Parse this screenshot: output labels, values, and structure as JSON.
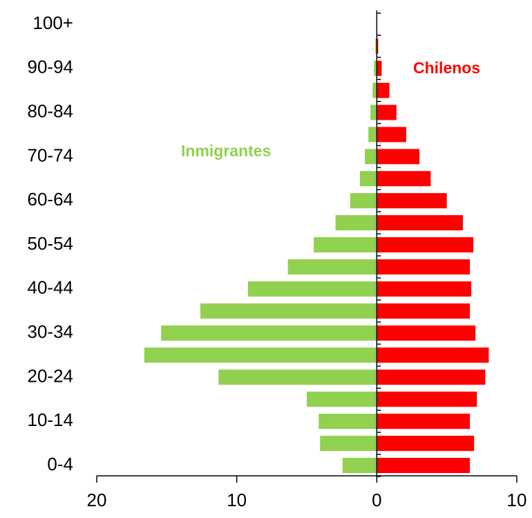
{
  "chart_data": {
    "type": "bar",
    "orientation": "horizontal",
    "categories": [
      "0-4",
      null,
      "10-14",
      null,
      "20-24",
      null,
      "30-34",
      null,
      "40-44",
      null,
      "50-54",
      null,
      "60-64",
      null,
      "70-74",
      null,
      "80-84",
      null,
      "90-94",
      null,
      "100+"
    ],
    "series": [
      {
        "name": "Inmigrantes",
        "color": "#92d050",
        "values": [
          -2.45,
          -4.05,
          -4.15,
          -5.0,
          -11.3,
          -16.6,
          -15.4,
          -12.6,
          -9.2,
          -6.35,
          -4.5,
          -2.95,
          -1.9,
          -1.2,
          -0.85,
          -0.6,
          -0.45,
          -0.3,
          -0.2,
          -0.1,
          0
        ]
      },
      {
        "name": "Chilenos",
        "color": "#ff0000",
        "values": [
          6.65,
          6.95,
          6.65,
          7.15,
          7.75,
          8.0,
          7.05,
          6.65,
          6.75,
          6.65,
          6.9,
          6.15,
          5.0,
          3.85,
          3.05,
          2.1,
          1.4,
          0.9,
          0.35,
          0.1,
          0.02
        ]
      }
    ],
    "xlim": [
      -20,
      10
    ],
    "xticks": [
      {
        "value": -20,
        "label": "20"
      },
      {
        "value": -10,
        "label": "10"
      },
      0,
      10
    ]
  }
}
